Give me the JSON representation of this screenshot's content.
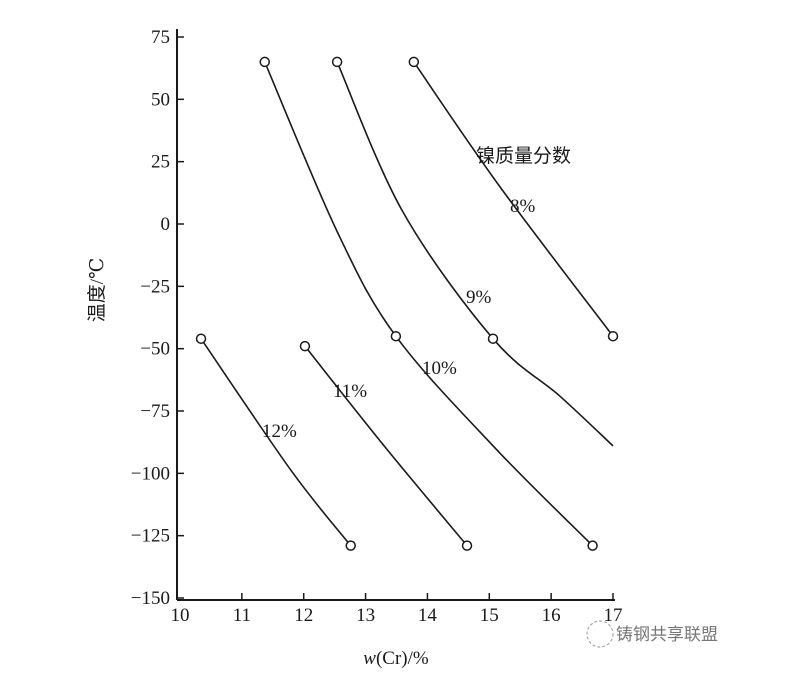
{
  "chart_data": {
    "type": "line",
    "title": "",
    "xlabel_italic": "w",
    "xlabel_rest": "(Cr)/%",
    "ylabel": "温度/℃",
    "xlim": [
      10,
      17
    ],
    "ylim": [
      -150,
      75
    ],
    "xticks": [
      10,
      11,
      12,
      13,
      14,
      15,
      16,
      17
    ],
    "yticks": [
      75,
      50,
      25,
      0,
      -25,
      -50,
      -75,
      -100,
      -125,
      -150
    ],
    "grid": false,
    "legend_title": "镍质量分数",
    "series": [
      {
        "name": "8%",
        "x": [
          13.78,
          15.17,
          17.0
        ],
        "y": [
          65,
          15,
          -45
        ],
        "markers": [
          true,
          false,
          true
        ]
      },
      {
        "name": "9%",
        "x": [
          12.54,
          13.6,
          15.06,
          16.14,
          17.0
        ],
        "y": [
          65,
          5,
          -46,
          -69,
          -89
        ],
        "markers": [
          true,
          false,
          true,
          false,
          false
        ]
      },
      {
        "name": "10%",
        "x": [
          11.37,
          12.54,
          13.49,
          15.1,
          16.67
        ],
        "y": [
          65,
          -3,
          -45,
          -90,
          -129
        ],
        "markers": [
          true,
          false,
          true,
          false,
          true
        ]
      },
      {
        "name": "11%",
        "x": [
          12.02,
          13.3,
          14.64
        ],
        "y": [
          -49,
          -89,
          -129
        ],
        "markers": [
          true,
          false,
          true
        ]
      },
      {
        "name": "12%",
        "x": [
          10.34,
          11.8,
          12.76
        ],
        "y": [
          -46,
          -99,
          -129
        ],
        "markers": [
          true,
          false,
          true
        ]
      }
    ],
    "colors": {
      "line": "#1a1a1a",
      "background": "#ffffff"
    }
  },
  "watermark": "铸钢共享联盟"
}
